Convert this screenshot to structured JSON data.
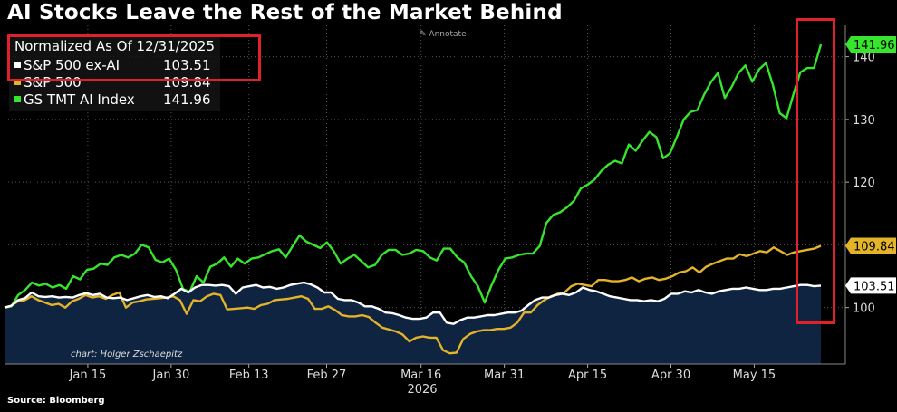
{
  "title": "AI Stocks Leave the Rest of the Market Behind",
  "source": "Source: Bloomberg",
  "annotate_label": "Annotate",
  "credit": "chart: Holger Zschaepitz",
  "legend": {
    "header": "Normalized As Of 12/31/2025",
    "entries": [
      {
        "name": "S&P 500 ex-AI",
        "value": "103.51",
        "color": "#ffffff"
      },
      {
        "name": "S&P 500",
        "value": "109.84",
        "color": "#e3b32a"
      },
      {
        "name": "GS TMT AI Index",
        "value": "141.96",
        "color": "#37e52d"
      }
    ]
  },
  "chart_data": {
    "type": "line",
    "title": "AI Stocks Leave the Rest of the Market Behind",
    "xlabel": "2026",
    "ylabel": "",
    "ylim": [
      91,
      145
    ],
    "yticks": [
      100,
      110,
      120,
      130,
      140
    ],
    "xtick_labels": [
      "Jan 15",
      "Jan 30",
      "Feb 13",
      "Feb 27",
      "Mar 16",
      "Mar 31",
      "Apr 15",
      "Apr 30",
      "May 15"
    ],
    "x_start": "2025-12-31",
    "x_end": "2026-05-27",
    "legend_position": "top-left",
    "grid": true,
    "series": [
      {
        "name": "GS TMT AI Index",
        "color": "#37e52d",
        "last_value": "141.96",
        "values": [
          100,
          100.2,
          102,
          102.8,
          104,
          103.5,
          103.8,
          103.2,
          103.6,
          103,
          105,
          104.5,
          106,
          106.2,
          107,
          106.8,
          108,
          108.4,
          108,
          108.6,
          110,
          109.6,
          107.6,
          107.2,
          107.8,
          106,
          103,
          102.5,
          105,
          104,
          106.5,
          107,
          108,
          106.5,
          107.8,
          107,
          107.8,
          108,
          108.5,
          109,
          109.3,
          108,
          109.8,
          111.5,
          110.5,
          110,
          109.5,
          110.4,
          109,
          107,
          107.8,
          108.4,
          107.4,
          106.4,
          106.8,
          108.4,
          109.2,
          109.2,
          108.4,
          108.6,
          109.2,
          109,
          108,
          107.5,
          109.4,
          109.4,
          108,
          107.2,
          105,
          103.4,
          100.8,
          103.6,
          106,
          107.8,
          108,
          108.4,
          108.6,
          108.6,
          109.8,
          113.5,
          114.8,
          115.2,
          116,
          117,
          119,
          119.6,
          120.4,
          121.8,
          122.8,
          123.4,
          123,
          126,
          125,
          126.6,
          128,
          127.2,
          123.8,
          124.6,
          127.2,
          130,
          131.2,
          131.5,
          134,
          136,
          137.4,
          133.4,
          135.2,
          137.4,
          138.6,
          136,
          138,
          139,
          135.5,
          131,
          130.2,
          134,
          137.5,
          138.2,
          138.2,
          141.96
        ]
      },
      {
        "name": "S&P 500",
        "color": "#e3b32a",
        "last_value": "109.84",
        "values": [
          100,
          100.3,
          101,
          101.2,
          101.8,
          101.2,
          100.8,
          100.4,
          100.6,
          100,
          101,
          101.4,
          102,
          101.6,
          101.8,
          101.4,
          102,
          102.4,
          100,
          100.8,
          101,
          101.3,
          101.4,
          101.5,
          101.6,
          101.8,
          101.2,
          99,
          101.2,
          101,
          101.8,
          102.2,
          102,
          99.7,
          99.8,
          99.9,
          100,
          99.8,
          100.4,
          100.6,
          101.2,
          101.3,
          101.4,
          101.6,
          101.8,
          101.4,
          99.8,
          99.8,
          100.2,
          99.6,
          98.8,
          98.6,
          98.6,
          98.8,
          98.5,
          97.6,
          96.8,
          96.5,
          96.2,
          95.7,
          94.6,
          95.2,
          95.4,
          95.2,
          95.2,
          93.2,
          92.7,
          92.8,
          95,
          95.8,
          96.2,
          96.4,
          96.4,
          96.6,
          96.6,
          96.8,
          97.6,
          99.2,
          99.2,
          100.4,
          101.2,
          101.8,
          102.2,
          102.4,
          103.4,
          103.8,
          103.6,
          103.4,
          104.4,
          104.4,
          104.2,
          104.2,
          104.4,
          104.8,
          104.2,
          104.6,
          104.8,
          104.4,
          104.6,
          105,
          105.6,
          105.8,
          106.4,
          105.6,
          106.5,
          107,
          107.4,
          107.8,
          107.8,
          108.5,
          108.2,
          108.6,
          109,
          108.8,
          109.6,
          109,
          108.4,
          108.8,
          109,
          109.2,
          109.4,
          109.84
        ]
      },
      {
        "name": "S&P 500 ex-AI",
        "color": "#ffffff",
        "last_value": "103.51",
        "values": [
          100,
          100.3,
          101.2,
          101.5,
          102.4,
          101.8,
          101.7,
          101.8,
          101.6,
          101.7,
          101.6,
          102,
          102.3,
          102,
          102.2,
          101.6,
          101.5,
          101.6,
          101.2,
          101.5,
          101.8,
          102,
          101.7,
          101.8,
          101.5,
          102.2,
          103,
          102.4,
          103.2,
          103.6,
          103.6,
          103.5,
          103.6,
          103.4,
          102.2,
          103.2,
          103.4,
          103.6,
          103.2,
          103.3,
          103,
          103.2,
          103.6,
          103.8,
          104,
          103.7,
          103.2,
          102.4,
          102.4,
          101.4,
          101.2,
          101.2,
          100.8,
          100.2,
          100.2,
          99.8,
          99.2,
          99.1,
          98.8,
          98.4,
          98.2,
          98.2,
          98.4,
          99.2,
          99.2,
          97.6,
          97.4,
          98,
          98.4,
          98.4,
          98.6,
          98.8,
          98.8,
          99,
          99.2,
          99.2,
          99.5,
          100.4,
          101.2,
          101.6,
          101.6,
          102,
          102.2,
          102,
          102.4,
          103.2,
          102.8,
          102.6,
          102.2,
          101.8,
          101.6,
          101.4,
          101.2,
          101.2,
          101,
          101.2,
          101,
          101.4,
          102.2,
          102.2,
          102.6,
          102.4,
          102.8,
          102.4,
          102.2,
          102.6,
          102.8,
          103,
          103,
          103.2,
          103,
          102.8,
          102.8,
          103,
          103,
          103.2,
          103.4,
          103.6,
          103.6,
          103.4,
          103.51
        ]
      }
    ]
  }
}
